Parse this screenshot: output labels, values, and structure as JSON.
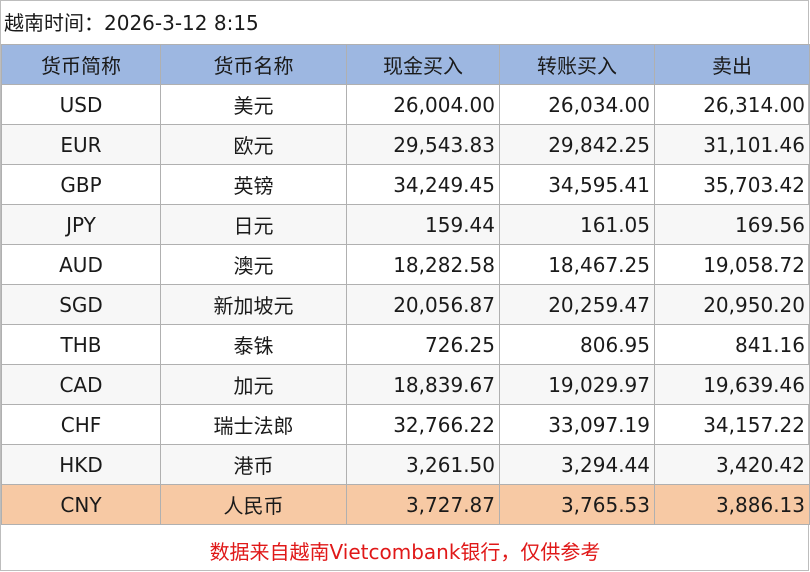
{
  "title": "越南时间：2026-3-12 8:15",
  "table": {
    "headers": [
      "货币简称",
      "货币名称",
      "现金买入",
      "转账买入",
      "卖出"
    ],
    "rows": [
      {
        "code": "USD",
        "name": "美元",
        "cash_buy": "26,004.00",
        "transfer_buy": "26,034.00",
        "sell": "26,314.00"
      },
      {
        "code": "EUR",
        "name": "欧元",
        "cash_buy": "29,543.83",
        "transfer_buy": "29,842.25",
        "sell": "31,101.46"
      },
      {
        "code": "GBP",
        "name": "英镑",
        "cash_buy": "34,249.45",
        "transfer_buy": "34,595.41",
        "sell": "35,703.42"
      },
      {
        "code": "JPY",
        "name": "日元",
        "cash_buy": "159.44",
        "transfer_buy": "161.05",
        "sell": "169.56"
      },
      {
        "code": "AUD",
        "name": "澳元",
        "cash_buy": "18,282.58",
        "transfer_buy": "18,467.25",
        "sell": "19,058.72"
      },
      {
        "code": "SGD",
        "name": "新加坡元",
        "cash_buy": "20,056.87",
        "transfer_buy": "20,259.47",
        "sell": "20,950.20"
      },
      {
        "code": "THB",
        "name": "泰铢",
        "cash_buy": "726.25",
        "transfer_buy": "806.95",
        "sell": "841.16"
      },
      {
        "code": "CAD",
        "name": "加元",
        "cash_buy": "18,839.67",
        "transfer_buy": "19,029.97",
        "sell": "19,639.46"
      },
      {
        "code": "CHF",
        "name": "瑞士法郎",
        "cash_buy": "32,766.22",
        "transfer_buy": "33,097.19",
        "sell": "34,157.22"
      },
      {
        "code": "HKD",
        "name": "港币",
        "cash_buy": "3,261.50",
        "transfer_buy": "3,294.44",
        "sell": "3,420.42"
      },
      {
        "code": "CNY",
        "name": "人民币",
        "cash_buy": "3,727.87",
        "transfer_buy": "3,765.53",
        "sell": "3,886.13"
      }
    ],
    "highlighted_row": "CNY"
  },
  "footer": "数据来自越南Vietcombank银行，仅供参考",
  "colors": {
    "header_background": "#9db7e1",
    "highlight_row": "#f7c9a4",
    "footer_text": "#e01818"
  }
}
